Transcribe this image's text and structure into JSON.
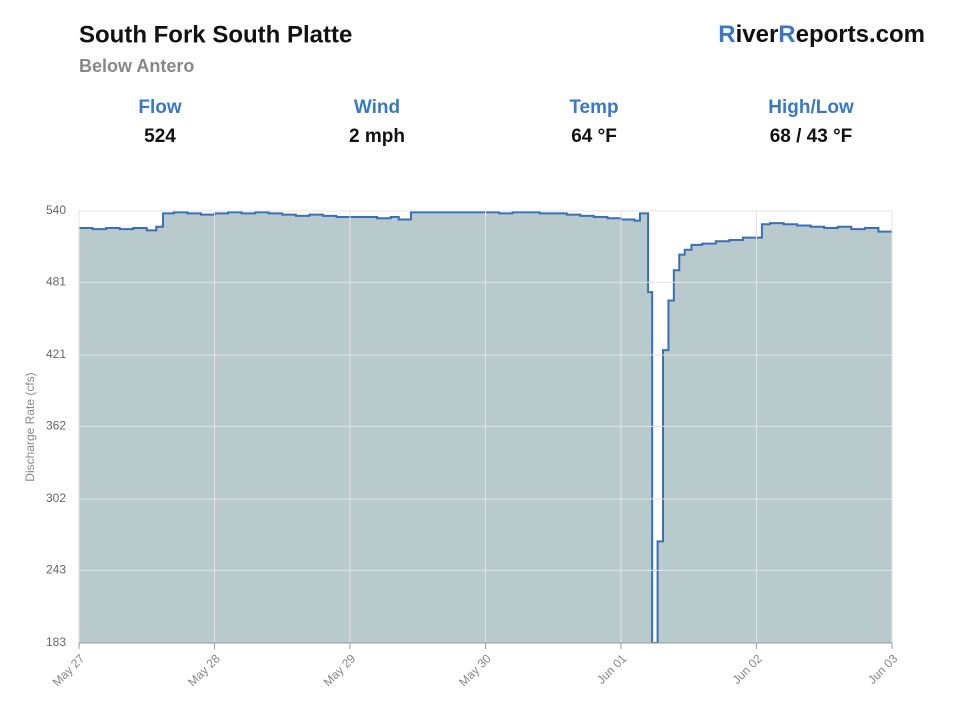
{
  "header": {
    "title": "South Fork South Platte",
    "subtitle": "Below Antero",
    "logo": [
      "R",
      "iver",
      "R",
      "eports.com"
    ]
  },
  "stats": [
    {
      "label": "Flow",
      "value": "524"
    },
    {
      "label": "Wind",
      "value": "2 mph"
    },
    {
      "label": "Temp",
      "value": "64 °F"
    },
    {
      "label": "High/Low",
      "value": "68 / 43 °F"
    }
  ],
  "chart_data": {
    "type": "line",
    "line_shape": "step",
    "area": true,
    "ylabel": "Discharge Rate (cfs)",
    "color": "#3a6fb5",
    "fill": "#b9cacd",
    "grid": true,
    "x": [
      0,
      0.1,
      0.2,
      0.3,
      0.4,
      0.5,
      0.57,
      0.62,
      0.7,
      0.8,
      0.9,
      1.0,
      1.1,
      1.2,
      1.3,
      1.4,
      1.5,
      1.6,
      1.7,
      1.8,
      1.9,
      2.0,
      2.1,
      2.2,
      2.3,
      2.36,
      2.45,
      2.6,
      2.8,
      3.0,
      3.1,
      3.2,
      3.4,
      3.6,
      3.7,
      3.8,
      3.9,
      4.0,
      4.1,
      4.14,
      4.2,
      4.23,
      4.27,
      4.31,
      4.35,
      4.39,
      4.43,
      4.47,
      4.52,
      4.6,
      4.7,
      4.8,
      4.9,
      5.0,
      5.04,
      5.1,
      5.2,
      5.3,
      5.4,
      5.5,
      5.6,
      5.7,
      5.8,
      5.9,
      6.0
    ],
    "values": [
      526,
      525,
      526,
      525,
      526,
      524,
      527,
      538,
      539,
      538,
      537,
      538,
      539,
      538,
      539,
      538,
      537,
      536,
      537,
      536,
      535,
      535,
      535,
      534,
      535,
      533,
      539,
      539,
      539,
      539,
      538,
      539,
      538,
      537,
      536,
      535,
      534,
      533,
      532,
      538,
      473,
      183,
      267,
      425,
      466,
      491,
      504,
      508,
      512,
      513,
      515,
      516,
      518,
      518,
      529,
      530,
      529,
      528,
      527,
      526,
      527,
      525,
      526,
      523,
      524
    ],
    "xlim": [
      0,
      6
    ],
    "xticks": [
      {
        "value": 0,
        "label": "May 27"
      },
      {
        "value": 1,
        "label": "May 28"
      },
      {
        "value": 2,
        "label": "May 29"
      },
      {
        "value": 3,
        "label": "May 30"
      },
      {
        "value": 4,
        "label": "Jun 01"
      },
      {
        "value": 5,
        "label": "Jun 02"
      },
      {
        "value": 6,
        "label": "Jun 03"
      }
    ],
    "ylim": [
      183,
      540
    ],
    "yticks": [
      183,
      243,
      302,
      362,
      421,
      481,
      540
    ]
  }
}
